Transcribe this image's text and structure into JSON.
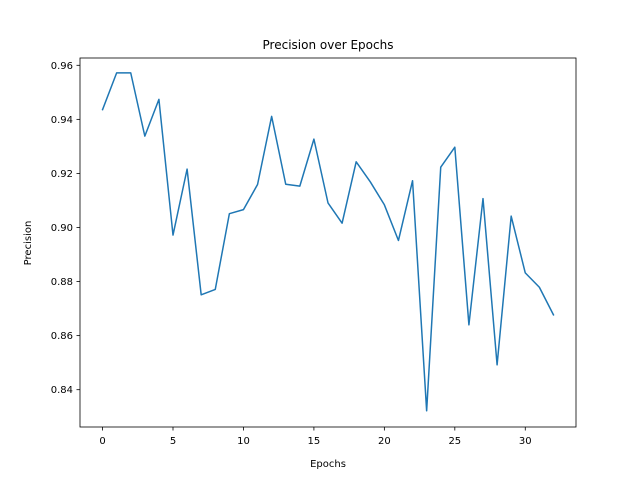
{
  "chart_data": {
    "type": "line",
    "title": "Precision over Epochs",
    "xlabel": "Epochs",
    "ylabel": "Precision",
    "xlim": [
      -1.6,
      33.6
    ],
    "ylim": [
      0.8262,
      0.9627
    ],
    "x_ticks": [
      0,
      5,
      10,
      15,
      20,
      25,
      30
    ],
    "y_ticks": [
      0.84,
      0.86,
      0.88,
      0.9,
      0.92,
      0.94,
      0.96
    ],
    "y_tick_labels": [
      "0.84",
      "0.86",
      "0.88",
      "0.90",
      "0.92",
      "0.94",
      "0.96"
    ],
    "grid": false,
    "legend": "none",
    "series": [
      {
        "color": "#1f77b4",
        "x": [
          0,
          1,
          2,
          3,
          4,
          5,
          6,
          7,
          8,
          9,
          10,
          11,
          12,
          13,
          14,
          15,
          16,
          17,
          18,
          19,
          20,
          21,
          22,
          23,
          24,
          25,
          26,
          27,
          28,
          29,
          30,
          31,
          32
        ],
        "values": [
          0.9436,
          0.9572,
          0.9572,
          0.9338,
          0.9474,
          0.8972,
          0.9216,
          0.8751,
          0.8771,
          0.9051,
          0.9066,
          0.9159,
          0.9411,
          0.916,
          0.9153,
          0.9327,
          0.9091,
          0.9016,
          0.9243,
          0.9169,
          0.9084,
          0.8952,
          0.9173,
          0.8322,
          0.9223,
          0.9297,
          0.864,
          0.9107,
          0.8492,
          0.9042,
          0.8832,
          0.8779,
          0.8677
        ]
      }
    ]
  }
}
